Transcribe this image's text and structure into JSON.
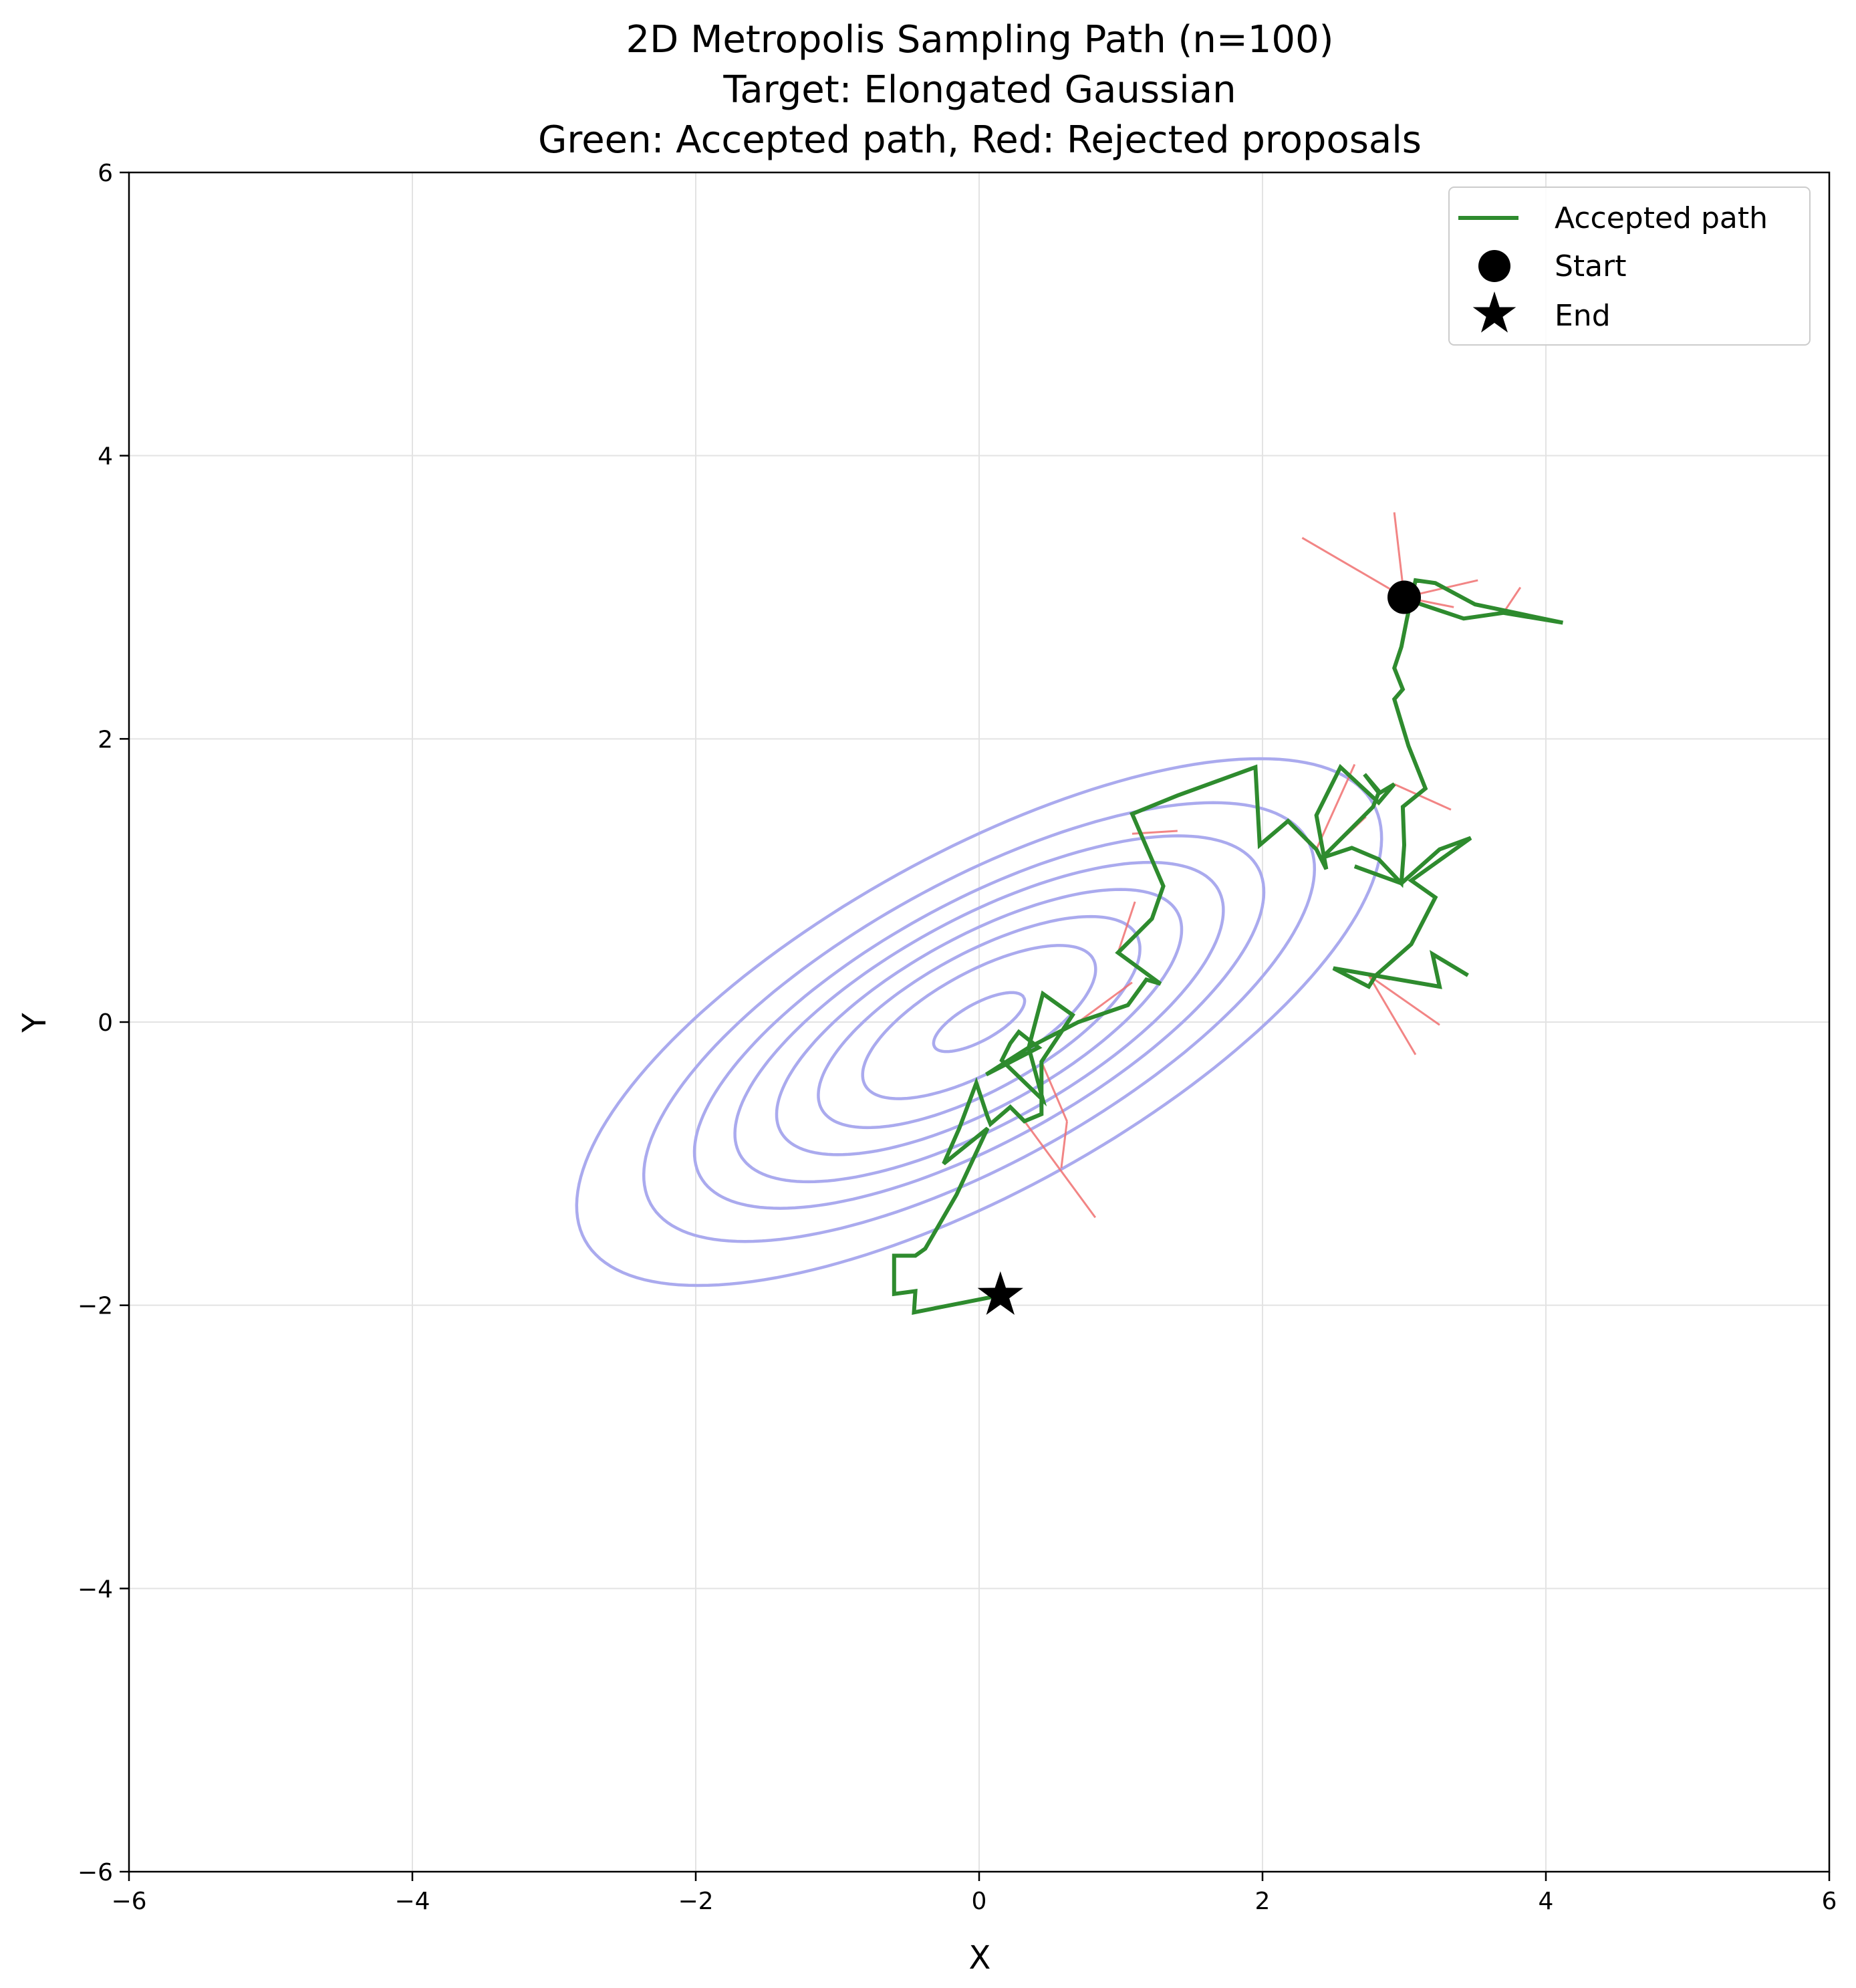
{
  "chart_data": {
    "type": "line",
    "title_lines": [
      "2D Metropolis Sampling Path (n=100)",
      "Target: Elongated Gaussian",
      "Green: Accepted path, Red: Rejected proposals"
    ],
    "xlabel": "X",
    "ylabel": "Y",
    "xlim": [
      -6,
      6
    ],
    "ylim": [
      -6,
      6
    ],
    "xticks": [
      -6,
      -4,
      -2,
      0,
      2,
      4,
      6
    ],
    "yticks": [
      -6,
      -4,
      -2,
      0,
      2,
      4,
      6
    ],
    "xtick_labels": [
      "−6",
      "−4",
      "−2",
      "0",
      "2",
      "4",
      "6"
    ],
    "ytick_labels": [
      "−6",
      "−4",
      "−2",
      "0",
      "2",
      "4",
      "6"
    ],
    "grid": true,
    "legend": {
      "position": "top-right",
      "entries": [
        {
          "label": "Accepted path",
          "marker": "line",
          "color": "#2e8b2e"
        },
        {
          "label": "Start",
          "marker": "circle",
          "color": "#000000"
        },
        {
          "label": "End",
          "marker": "star",
          "color": "#000000"
        }
      ]
    },
    "colors": {
      "accepted": "#2e8b2e",
      "rejected": "#f07070",
      "contour": "#aaaaee",
      "grid": "#e3e3e3"
    },
    "target": {
      "center": [
        0,
        0
      ],
      "correlation_angle_deg": 29,
      "contour_semi_axes": [
        [
          0.36,
          0.13
        ],
        [
          0.92,
          0.35
        ],
        [
          1.27,
          0.48
        ],
        [
          1.6,
          0.6
        ],
        [
          1.93,
          0.72
        ],
        [
          2.25,
          0.84
        ],
        [
          2.65,
          0.99
        ],
        [
          3.18,
          1.19
        ]
      ]
    },
    "start": [
      3.0,
      3.0
    ],
    "end": [
      0.15,
      -1.93
    ],
    "accepted_path": [
      [
        3.0,
        3.0
      ],
      [
        3.12,
        2.95
      ],
      [
        3.42,
        2.85
      ],
      [
        3.7,
        2.89
      ],
      [
        4.12,
        2.82
      ],
      [
        3.5,
        2.95
      ],
      [
        3.22,
        3.1
      ],
      [
        3.08,
        3.12
      ],
      [
        3.02,
        2.85
      ],
      [
        2.98,
        2.65
      ],
      [
        2.93,
        2.5
      ],
      [
        2.99,
        2.35
      ],
      [
        2.93,
        2.28
      ],
      [
        3.03,
        1.95
      ],
      [
        3.15,
        1.65
      ],
      [
        2.99,
        1.52
      ],
      [
        3.0,
        1.25
      ],
      [
        2.98,
        0.98
      ],
      [
        2.82,
        1.15
      ],
      [
        2.63,
        1.23
      ],
      [
        2.42,
        1.16
      ],
      [
        2.78,
        1.52
      ],
      [
        2.82,
        1.62
      ],
      [
        2.72,
        1.75
      ],
      [
        2.83,
        1.62
      ],
      [
        2.93,
        1.68
      ],
      [
        2.82,
        1.55
      ],
      [
        2.55,
        1.8
      ],
      [
        2.38,
        1.46
      ],
      [
        2.45,
        1.08
      ],
      [
        2.38,
        1.22
      ],
      [
        2.18,
        1.42
      ],
      [
        1.98,
        1.25
      ],
      [
        1.95,
        1.8
      ],
      [
        1.4,
        1.6
      ],
      [
        1.08,
        1.47
      ],
      [
        1.3,
        0.96
      ],
      [
        1.22,
        0.73
      ],
      [
        0.98,
        0.49
      ],
      [
        1.28,
        0.27
      ],
      [
        1.18,
        0.3
      ],
      [
        1.05,
        0.12
      ],
      [
        0.7,
        0.0
      ],
      [
        0.35,
        -0.18
      ],
      [
        0.05,
        -0.37
      ],
      [
        0.42,
        -0.18
      ],
      [
        0.28,
        -0.07
      ],
      [
        0.22,
        -0.15
      ],
      [
        0.16,
        -0.27
      ],
      [
        0.45,
        -0.55
      ],
      [
        0.35,
        -0.18
      ],
      [
        0.45,
        0.2
      ],
      [
        0.66,
        0.05
      ],
      [
        0.44,
        -0.28
      ],
      [
        0.44,
        -0.65
      ],
      [
        0.32,
        -0.7
      ],
      [
        0.22,
        -0.6
      ],
      [
        0.08,
        -0.72
      ],
      [
        0.06,
        -0.67
      ],
      [
        -0.02,
        -0.43
      ],
      [
        -0.14,
        -0.75
      ],
      [
        -0.25,
        -1.0
      ],
      [
        0.06,
        -0.75
      ],
      [
        -0.16,
        -1.22
      ],
      [
        -0.38,
        -1.6
      ],
      [
        -0.45,
        -1.65
      ],
      [
        -0.6,
        -1.65
      ],
      [
        -0.6,
        -1.92
      ],
      [
        -0.45,
        -1.9
      ],
      [
        -0.46,
        -2.05
      ],
      [
        0.15,
        -1.93
      ]
    ],
    "accepted_path_2": [
      [
        2.65,
        1.1
      ],
      [
        2.98,
        0.98
      ],
      [
        3.25,
        1.22
      ],
      [
        3.47,
        1.3
      ],
      [
        3.05,
        1.0
      ],
      [
        3.22,
        0.88
      ],
      [
        3.05,
        0.55
      ],
      [
        2.8,
        0.33
      ],
      [
        2.75,
        0.25
      ],
      [
        2.5,
        0.38
      ],
      [
        3.25,
        0.25
      ],
      [
        3.2,
        0.48
      ],
      [
        3.45,
        0.33
      ]
    ],
    "rejected_proposals": [
      [
        [
          3.0,
          3.0
        ],
        [
          2.28,
          3.42
        ]
      ],
      [
        [
          3.0,
          3.0
        ],
        [
          2.93,
          3.6
        ]
      ],
      [
        [
          3.0,
          3.0
        ],
        [
          3.52,
          3.12
        ]
      ],
      [
        [
          3.0,
          3.0
        ],
        [
          3.35,
          2.93
        ]
      ],
      [
        [
          3.7,
          2.89
        ],
        [
          3.82,
          3.07
        ]
      ],
      [
        [
          2.93,
          1.68
        ],
        [
          3.33,
          1.5
        ]
      ],
      [
        [
          2.42,
          1.16
        ],
        [
          2.73,
          1.45
        ]
      ],
      [
        [
          2.38,
          1.22
        ],
        [
          2.65,
          1.82
        ]
      ],
      [
        [
          1.08,
          1.33
        ],
        [
          1.4,
          1.35
        ]
      ],
      [
        [
          0.98,
          0.49
        ],
        [
          1.1,
          0.85
        ]
      ],
      [
        [
          0.7,
          0.0
        ],
        [
          1.08,
          0.28
        ]
      ],
      [
        [
          0.44,
          -0.28
        ],
        [
          0.62,
          -0.7
        ]
      ],
      [
        [
          0.62,
          -0.7
        ],
        [
          0.58,
          -1.03
        ]
      ],
      [
        [
          0.32,
          -0.7
        ],
        [
          0.82,
          -1.38
        ]
      ],
      [
        [
          2.75,
          0.33
        ],
        [
          3.25,
          -0.02
        ]
      ],
      [
        [
          2.75,
          0.33
        ],
        [
          3.08,
          -0.23
        ]
      ],
      [
        [
          2.5,
          0.38
        ],
        [
          2.9,
          0.3
        ]
      ]
    ]
  }
}
